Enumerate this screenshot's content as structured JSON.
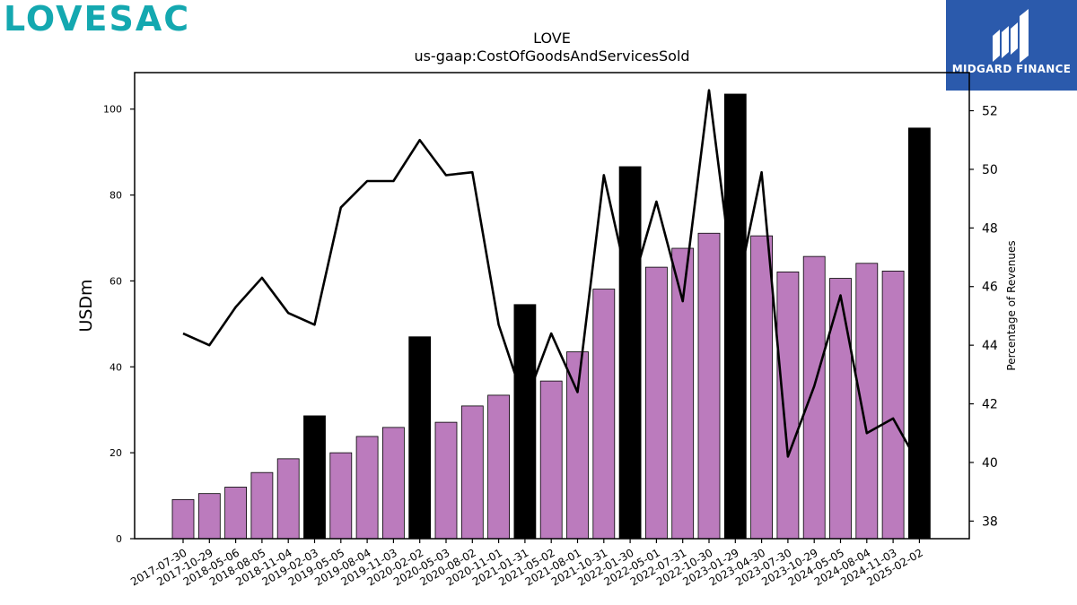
{
  "branding": {
    "left_logo_text": "LOVESAC",
    "left_logo_color": "#14a8b0",
    "right_logo_text": "MIDGARD FINANCE",
    "right_logo_bg": "#2b5aac"
  },
  "chart_data": {
    "type": "bar",
    "title": "LOVE",
    "subtitle": "us-gaap:CostOfGoodsAndServicesSold",
    "ylabel": "USDm",
    "y2label": "Percentage of Revenues",
    "ylim": [
      0,
      108.5
    ],
    "y2lim": [
      37.4,
      53.3
    ],
    "yticks": [
      0,
      20,
      40,
      60,
      80,
      100
    ],
    "y2ticks": [
      38,
      40,
      42,
      44,
      46,
      48,
      50,
      52
    ],
    "categories": [
      "2017-07-30",
      "2017-10-29",
      "2018-05-06",
      "2018-08-05",
      "2018-11-04",
      "2019-02-03",
      "2019-05-05",
      "2019-08-04",
      "2019-11-03",
      "2020-02-02",
      "2020-05-03",
      "2020-08-02",
      "2020-11-01",
      "2021-01-31",
      "2021-05-02",
      "2021-08-01",
      "2021-10-31",
      "2022-01-30",
      "2022-05-01",
      "2022-07-31",
      "2022-10-30",
      "2023-01-29",
      "2023-04-30",
      "2023-07-30",
      "2023-10-29",
      "2024-05-05",
      "2024-08-04",
      "2024-11-03",
      "2025-02-02"
    ],
    "series": [
      {
        "kind": "bar",
        "values": [
          9.1,
          10.5,
          12.0,
          15.4,
          18.6,
          28.6,
          20.0,
          23.8,
          25.9,
          47.0,
          27.1,
          30.9,
          33.4,
          54.5,
          36.7,
          43.5,
          58.1,
          86.6,
          63.2,
          67.6,
          71.1,
          103.5,
          70.5,
          62.1,
          65.7,
          60.6,
          64.1,
          62.3,
          95.6
        ],
        "highlight": [
          false,
          false,
          false,
          false,
          false,
          true,
          false,
          false,
          false,
          true,
          false,
          false,
          false,
          true,
          false,
          false,
          false,
          true,
          false,
          false,
          false,
          true,
          false,
          false,
          false,
          false,
          false,
          false,
          true
        ],
        "color": "#bb7bbd",
        "highlight_color": "#000000"
      },
      {
        "kind": "line",
        "axis": "right",
        "values": [
          44.4,
          44.0,
          45.3,
          46.3,
          45.1,
          44.7,
          48.7,
          49.6,
          49.6,
          51.0,
          49.8,
          49.9,
          44.7,
          42.0,
          44.4,
          42.4,
          49.8,
          45.8,
          48.9,
          45.5,
          52.7,
          45.6,
          49.9,
          40.2,
          42.6,
          45.7,
          41.0,
          41.5,
          39.9
        ],
        "color": "#000000"
      }
    ],
    "grid": false
  }
}
